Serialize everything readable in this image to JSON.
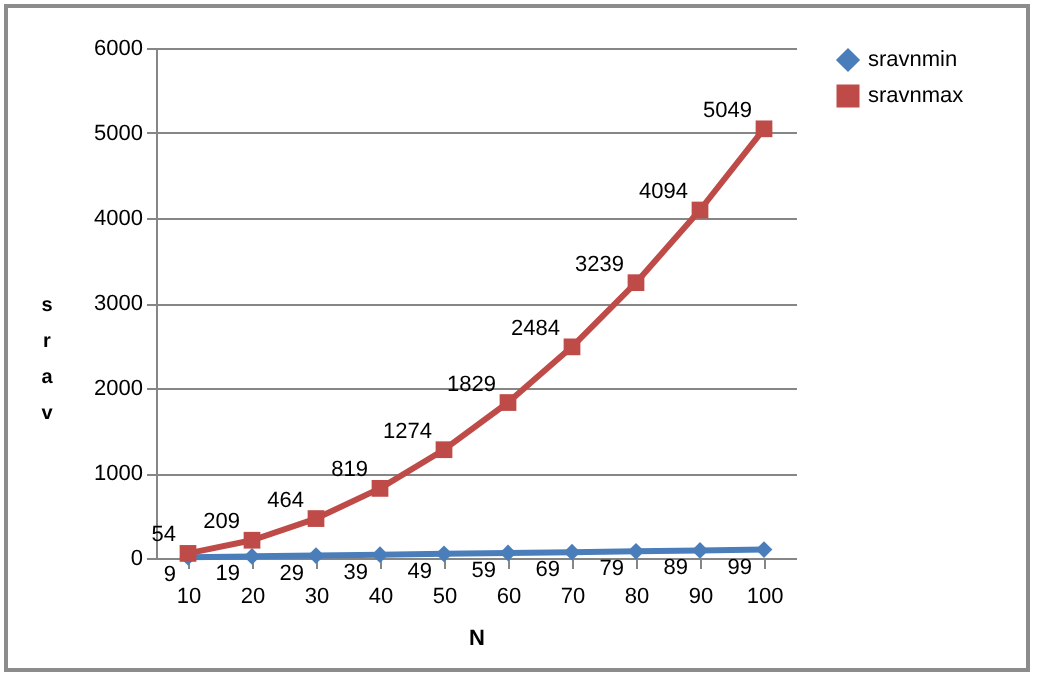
{
  "chart_data": {
    "type": "line",
    "xlabel": "N",
    "ylabel": "srav",
    "categories": [
      "10",
      "20",
      "30",
      "40",
      "50",
      "60",
      "70",
      "80",
      "90",
      "100"
    ],
    "series": [
      {
        "name": "sravnmin",
        "color": "#4a7ebb",
        "marker": "diamond",
        "values": [
          9,
          19,
          29,
          39,
          49,
          59,
          69,
          79,
          89,
          99
        ]
      },
      {
        "name": "sravnmax",
        "color": "#be4b48",
        "marker": "square",
        "values": [
          54,
          209,
          464,
          819,
          1274,
          1829,
          2484,
          3239,
          4094,
          5049
        ]
      }
    ],
    "ylim": [
      0,
      6000
    ],
    "yticks": [
      0,
      1000,
      2000,
      3000,
      4000,
      5000,
      6000
    ],
    "grid": "y",
    "legend": "right",
    "data_labels": true
  }
}
